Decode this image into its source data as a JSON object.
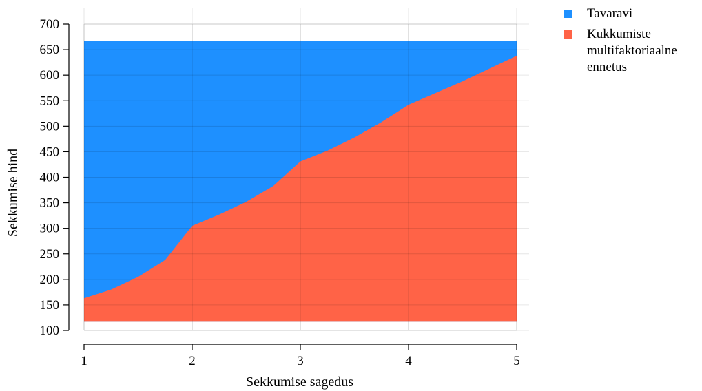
{
  "chart_data": {
    "type": "area",
    "xlabel": "Sekkumise sagedus",
    "ylabel": "Sekkumise hind",
    "xlim": [
      1,
      5
    ],
    "ylim": [
      100,
      700
    ],
    "xticks": [
      1,
      2,
      3,
      4,
      5
    ],
    "yticks": [
      100,
      150,
      200,
      250,
      300,
      350,
      400,
      450,
      500,
      550,
      600,
      650,
      700
    ],
    "grid": true,
    "legend_position": "top-right outside",
    "baseline": 117,
    "series": [
      {
        "name": "Tavaravi",
        "color": "#1E90FF",
        "x": [
          1,
          5
        ],
        "upper": [
          667,
          667
        ]
      },
      {
        "name": "Kukkumiste multifaktoriaalne ennetus",
        "color": "#FF6347",
        "x": [
          1,
          1.25,
          1.5,
          1.75,
          2,
          2.25,
          2.5,
          2.75,
          3,
          3.25,
          3.5,
          3.75,
          4,
          4.25,
          4.5,
          4.75,
          5
        ],
        "upper": [
          163,
          180,
          205,
          238,
          305,
          327,
          352,
          383,
          431,
          452,
          478,
          508,
          542,
          565,
          588,
          613,
          638
        ]
      }
    ]
  },
  "legend": {
    "items": [
      {
        "label": "Tavaravi",
        "color": "#1E90FF"
      },
      {
        "label": "Kukkumiste multifaktoriaalne ennetus",
        "color": "#FF6347"
      }
    ]
  }
}
